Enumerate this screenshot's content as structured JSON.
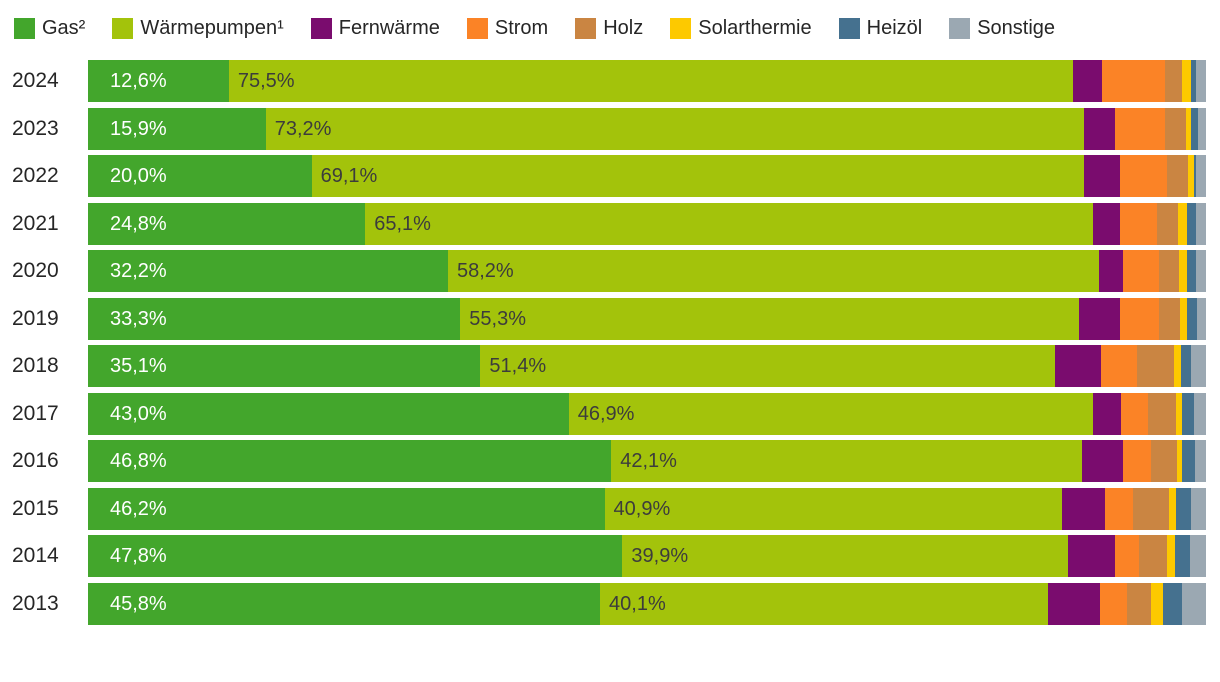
{
  "legend": {
    "items": [
      {
        "key": "gas",
        "label": "Gas²",
        "color": "#43a62c"
      },
      {
        "key": "waermepumpen",
        "label": "Wärmepumpen¹",
        "color": "#a3c30b"
      },
      {
        "key": "fernwaerme",
        "label": "Fernwärme",
        "color": "#7a0c6e"
      },
      {
        "key": "strom",
        "label": "Strom",
        "color": "#fb8326"
      },
      {
        "key": "holz",
        "label": "Holz",
        "color": "#ca8542"
      },
      {
        "key": "solarthermie",
        "label": "Solarthermie",
        "color": "#fdc900"
      },
      {
        "key": "heizoel",
        "label": "Heizöl",
        "color": "#45718f"
      },
      {
        "key": "sonstige",
        "label": "Sonstige",
        "color": "#9ba8b2"
      }
    ]
  },
  "chart_data": {
    "type": "bar",
    "orientation": "horizontal",
    "stacked": true,
    "unit": "%",
    "xlim": [
      0,
      100
    ],
    "grid": false,
    "legend_position": "top",
    "categories": [
      "2024",
      "2023",
      "2022",
      "2021",
      "2020",
      "2019",
      "2018",
      "2017",
      "2016",
      "2015",
      "2014",
      "2013"
    ],
    "series": [
      {
        "name": "Gas²",
        "key": "gas",
        "color": "#43a62c",
        "values": [
          12.6,
          15.9,
          20.0,
          24.8,
          32.2,
          33.3,
          35.1,
          43.0,
          46.8,
          46.2,
          47.8,
          45.8
        ]
      },
      {
        "name": "Wärmepumpen¹",
        "key": "waermepumpen",
        "color": "#a3c30b",
        "values": [
          75.5,
          73.2,
          69.1,
          65.1,
          58.2,
          55.3,
          51.4,
          46.9,
          42.1,
          40.9,
          39.9,
          40.1
        ]
      },
      {
        "name": "Fernwärme",
        "key": "fernwaerme",
        "color": "#7a0c6e",
        "values": [
          2.6,
          2.8,
          3.2,
          2.4,
          2.2,
          3.7,
          4.1,
          2.5,
          3.7,
          3.9,
          4.2,
          4.6
        ]
      },
      {
        "name": "Strom",
        "key": "strom",
        "color": "#fb8326",
        "values": [
          5.6,
          4.4,
          4.2,
          3.3,
          3.2,
          3.5,
          3.2,
          2.4,
          2.5,
          2.5,
          2.1,
          2.4
        ]
      },
      {
        "name": "Holz",
        "key": "holz",
        "color": "#ca8542",
        "values": [
          1.6,
          1.9,
          1.9,
          1.9,
          1.8,
          1.9,
          3.3,
          2.5,
          2.3,
          3.2,
          2.5,
          2.2
        ]
      },
      {
        "name": "Solarthermie",
        "key": "solarthermie",
        "color": "#fdc900",
        "values": [
          0.8,
          0.5,
          0.5,
          0.8,
          0.7,
          0.6,
          0.7,
          0.6,
          0.5,
          0.6,
          0.7,
          1.1
        ]
      },
      {
        "name": "Heizöl",
        "key": "heizoel",
        "color": "#45718f",
        "values": [
          0.4,
          0.6,
          0.2,
          0.8,
          0.8,
          0.9,
          0.9,
          1.0,
          1.1,
          1.4,
          1.4,
          1.7
        ]
      },
      {
        "name": "Sonstige",
        "key": "sonstige",
        "color": "#9ba8b2",
        "values": [
          0.9,
          0.7,
          0.9,
          0.9,
          0.9,
          0.8,
          1.3,
          1.1,
          1.0,
          1.3,
          1.4,
          2.1
        ]
      }
    ],
    "value_labels": {
      "shown_for": [
        "gas",
        "waermepumpen"
      ],
      "gas": [
        "12,6%",
        "15,9%",
        "20,0%",
        "24,8%",
        "32,2%",
        "33,3%",
        "35,1%",
        "43,0%",
        "46,8%",
        "46,2%",
        "47,8%",
        "45,8%"
      ],
      "waermepumpen": [
        "75,5%",
        "73,2%",
        "69,1%",
        "65,1%",
        "58,2%",
        "55,3%",
        "51,4%",
        "46,9%",
        "42,1%",
        "40,9%",
        "39,9%",
        "40,1%"
      ]
    }
  }
}
